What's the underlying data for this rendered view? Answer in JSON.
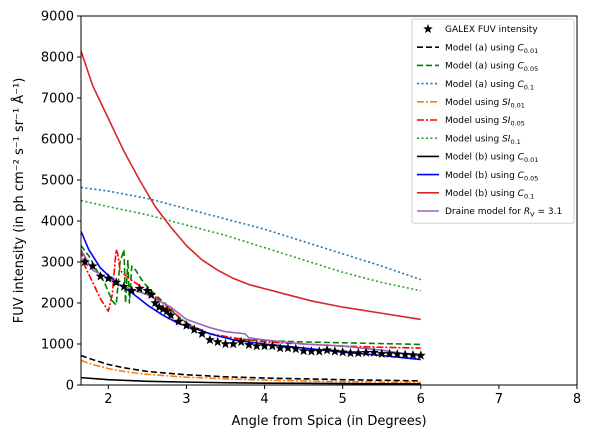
{
  "chart_data": {
    "type": "line",
    "xlabel": "Angle from Spica (in Degrees)",
    "ylabel": "FUV intensity (in ph cm⁻² s⁻¹ sr⁻¹ Å⁻¹)",
    "xlim": [
      1.65,
      8
    ],
    "ylim": [
      0,
      9000
    ],
    "xticks": [
      "2",
      "3",
      "4",
      "5",
      "6",
      "7",
      "8"
    ],
    "yticks": [
      "0",
      "1000",
      "2000",
      "3000",
      "4000",
      "5000",
      "6000",
      "7000",
      "8000",
      "9000"
    ],
    "xtick_values": [
      2,
      3,
      4,
      5,
      6,
      7,
      8
    ],
    "ytick_values": [
      0,
      1000,
      2000,
      3000,
      4000,
      5000,
      6000,
      7000,
      8000,
      9000
    ],
    "grid": false,
    "legend_position": "top-right",
    "series": [
      {
        "name": "GALEX FUV intensity",
        "kind": "markers",
        "color": "#000000",
        "x": [
          1.7,
          1.8,
          1.9,
          2.0,
          2.1,
          2.2,
          2.3,
          2.4,
          2.5,
          2.55,
          2.6,
          2.65,
          2.7,
          2.75,
          2.8,
          2.9,
          3.0,
          3.1,
          3.2,
          3.3,
          3.4,
          3.5,
          3.6,
          3.7,
          3.8,
          3.9,
          4.0,
          4.1,
          4.2,
          4.3,
          4.4,
          4.5,
          4.6,
          4.7,
          4.8,
          4.9,
          5.0,
          5.1,
          5.2,
          5.3,
          5.4,
          5.5,
          5.6,
          5.7,
          5.8,
          5.9,
          6.0
        ],
        "y": [
          3000,
          2900,
          2650,
          2600,
          2500,
          2400,
          2300,
          2350,
          2300,
          2200,
          2000,
          1900,
          1850,
          1800,
          1700,
          1550,
          1450,
          1350,
          1250,
          1100,
          1050,
          1000,
          1000,
          1050,
          980,
          950,
          950,
          950,
          900,
          900,
          880,
          830,
          820,
          820,
          850,
          820,
          800,
          780,
          780,
          790,
          790,
          760,
          760,
          750,
          740,
          730,
          720
        ]
      },
      {
        "name": "Model (a) using C₀.₀₁",
        "label_main": "Model (a) using ",
        "label_sym": "C",
        "label_sub": "0.01",
        "kind": "line",
        "color": "#000000",
        "dash": "6,3",
        "x": [
          1.65,
          1.8,
          2.0,
          2.2,
          2.5,
          3.0,
          3.5,
          4.0,
          4.5,
          5.0,
          5.5,
          6.0
        ],
        "y": [
          720,
          620,
          500,
          420,
          330,
          250,
          200,
          170,
          150,
          130,
          115,
          100
        ]
      },
      {
        "name": "Model (a) using C₀.₀₅",
        "label_main": "Model (a) using ",
        "label_sym": "C",
        "label_sub": "0.05",
        "kind": "line",
        "color": "#008000",
        "dash": "6,3",
        "x": [
          1.65,
          1.75,
          1.85,
          1.95,
          2.05,
          2.1,
          2.15,
          2.2,
          2.22,
          2.25,
          2.27,
          2.3,
          2.35,
          2.45,
          2.6,
          2.75,
          2.9,
          3.1,
          3.3,
          3.5,
          3.8,
          4.0,
          4.5,
          5.0,
          5.5,
          6.0
        ],
        "y": [
          3400,
          3150,
          2800,
          2500,
          2050,
          1950,
          3000,
          3300,
          2000,
          3050,
          2000,
          2900,
          2800,
          2500,
          2200,
          1950,
          1650,
          1400,
          1250,
          1150,
          1100,
          1080,
          1050,
          1030,
          1010,
          990
        ]
      },
      {
        "name": "Model (a) using C₀.₁",
        "label_main": "Model (a) using ",
        "label_sym": "C",
        "label_sub": "0.1",
        "kind": "line",
        "color": "#1f77b4",
        "dash": "2,2.5",
        "x": [
          1.65,
          2.0,
          2.5,
          3.0,
          3.5,
          4.0,
          4.5,
          5.0,
          5.5,
          6.0
        ],
        "y": [
          4820,
          4730,
          4550,
          4300,
          4050,
          3800,
          3500,
          3200,
          2900,
          2570
        ]
      },
      {
        "name": "Model using SI₀.₀₁",
        "label_main": "Model using ",
        "label_sym": "SI",
        "label_sub": "0.01",
        "kind": "line",
        "color": "#ff7f0e",
        "dash": "7,2,2,2",
        "x": [
          1.65,
          1.8,
          2.0,
          2.2,
          2.5,
          3.0,
          3.5,
          4.0,
          4.5,
          5.0,
          5.5,
          6.0
        ],
        "y": [
          600,
          500,
          400,
          330,
          260,
          190,
          150,
          120,
          100,
          80,
          70,
          60
        ]
      },
      {
        "name": "Model using SI₀.₀₅",
        "label_main": "Model using ",
        "label_sym": "SI",
        "label_sub": "0.05",
        "kind": "line",
        "color": "#ff0000",
        "dash": "7,2,2,2",
        "x": [
          1.65,
          1.7,
          1.8,
          1.9,
          2.0,
          2.05,
          2.1,
          2.12,
          2.15,
          2.2,
          2.3,
          2.5,
          2.7,
          3.0,
          3.3,
          3.6,
          4.0,
          4.5,
          5.0,
          5.5,
          6.0
        ],
        "y": [
          3300,
          2900,
          2500,
          2100,
          1800,
          2200,
          3300,
          3200,
          2800,
          2700,
          2550,
          2300,
          2000,
          1500,
          1250,
          1150,
          1050,
          1000,
          950,
          920,
          900
        ]
      },
      {
        "name": "Model using SI₀.₁",
        "label_main": "Model using ",
        "label_sym": "SI",
        "label_sub": "0.1",
        "kind": "line",
        "color": "#2ca02c",
        "dash": "2,2.5",
        "x": [
          1.65,
          2.0,
          2.5,
          3.0,
          3.5,
          4.0,
          4.5,
          5.0,
          5.5,
          6.0
        ],
        "y": [
          4500,
          4350,
          4150,
          3900,
          3650,
          3350,
          3050,
          2750,
          2500,
          2300
        ]
      },
      {
        "name": "Model (b) using C₀.₀₁",
        "label_main": "Model (b) using ",
        "label_sym": "C",
        "label_sub": "0.01",
        "kind": "line",
        "color": "#000000",
        "dash": "",
        "x": [
          1.65,
          2.0,
          2.5,
          3.0,
          3.5,
          4.0,
          4.5,
          5.0,
          5.5,
          6.0
        ],
        "y": [
          180,
          130,
          90,
          70,
          55,
          45,
          40,
          35,
          30,
          25
        ]
      },
      {
        "name": "Model (b) using C₀.₀₅",
        "label_main": "Model (b) using ",
        "label_sym": "C",
        "label_sub": "0.05",
        "kind": "line",
        "color": "#0000ff",
        "dash": "",
        "x": [
          1.65,
          1.75,
          1.9,
          2.1,
          2.3,
          2.5,
          2.7,
          2.9,
          3.1,
          3.3,
          3.6,
          4.0,
          4.5,
          5.0,
          5.5,
          6.0
        ],
        "y": [
          3750,
          3300,
          2850,
          2500,
          2250,
          1950,
          1700,
          1500,
          1380,
          1250,
          1100,
          1000,
          900,
          800,
          720,
          620
        ]
      },
      {
        "name": "Model (b) using C₀.₁",
        "label_main": "Model (b) using ",
        "label_sym": "C",
        "label_sub": "0.1",
        "kind": "line",
        "color": "#d62728",
        "dash": "",
        "x": [
          1.65,
          1.8,
          2.0,
          2.2,
          2.4,
          2.6,
          2.8,
          3.0,
          3.2,
          3.4,
          3.6,
          3.8,
          4.0,
          4.3,
          4.6,
          5.0,
          5.5,
          6.0
        ],
        "y": [
          8150,
          7300,
          6500,
          5700,
          5000,
          4350,
          3850,
          3400,
          3050,
          2800,
          2600,
          2450,
          2350,
          2200,
          2050,
          1900,
          1750,
          1600
        ]
      },
      {
        "name": "Draine model for R_V = 3.1",
        "label_main": "Draine model for ",
        "label_sym": "R",
        "label_sub": "V",
        "label_tail": " = 3.1",
        "kind": "line",
        "color": "#9467bd",
        "dash": "",
        "x": [
          1.65,
          1.8,
          2.0,
          2.2,
          2.5,
          2.8,
          3.0,
          3.3,
          3.5,
          3.75,
          3.8,
          4.0,
          4.5,
          5.0,
          5.5,
          6.0
        ],
        "y": [
          3300,
          2800,
          2600,
          2400,
          2200,
          1900,
          1600,
          1400,
          1300,
          1250,
          1150,
          1100,
          1000,
          950,
          850,
          700
        ]
      }
    ]
  }
}
